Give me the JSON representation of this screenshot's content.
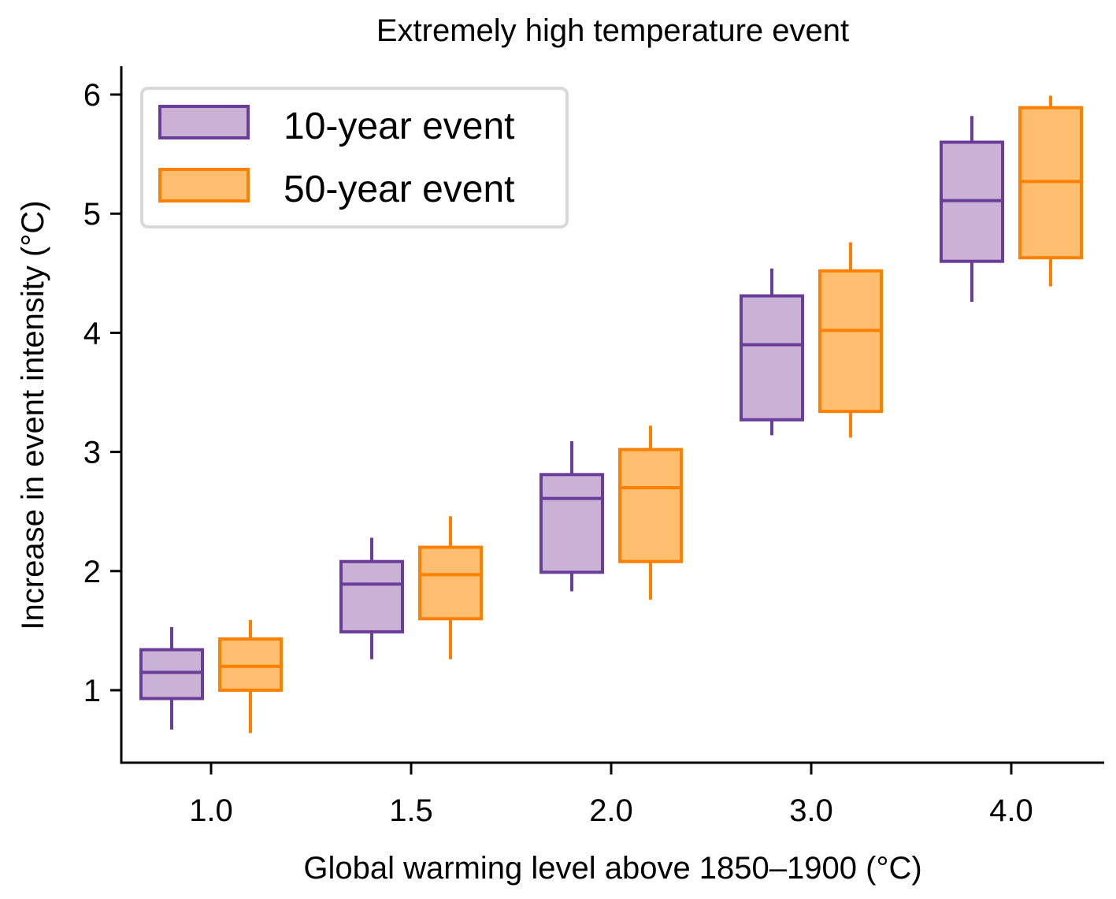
{
  "chart_data": {
    "type": "boxplot",
    "title": "Extremely high temperature event",
    "xlabel": "Global warming level above 1850–1900 (°C)",
    "ylabel": "Increase in event intensity (°C)",
    "categories": [
      "1.0",
      "1.5",
      "2.0",
      "3.0",
      "4.0"
    ],
    "yticks": [
      "1",
      "2",
      "3",
      "4",
      "5",
      "6"
    ],
    "ylim": [
      0.39,
      6.23
    ],
    "grid": false,
    "legend": {
      "position": "top-left"
    },
    "series": [
      {
        "name": "10-year event",
        "edge_color": "#6a3d9a",
        "fill_color": "#cab2d6",
        "boxes": [
          {
            "whislo": 0.67,
            "q1": 0.93,
            "med": 1.15,
            "q3": 1.34,
            "whishi": 1.53
          },
          {
            "whislo": 1.26,
            "q1": 1.49,
            "med": 1.89,
            "q3": 2.08,
            "whishi": 2.28
          },
          {
            "whislo": 1.83,
            "q1": 1.99,
            "med": 2.61,
            "q3": 2.81,
            "whishi": 3.09
          },
          {
            "whislo": 3.14,
            "q1": 3.27,
            "med": 3.9,
            "q3": 4.31,
            "whishi": 4.54
          },
          {
            "whislo": 4.26,
            "q1": 4.6,
            "med": 5.11,
            "q3": 5.6,
            "whishi": 5.82
          }
        ]
      },
      {
        "name": "50-year event",
        "edge_color": "#ff7f00",
        "fill_color": "#fdbf6f",
        "boxes": [
          {
            "whislo": 0.64,
            "q1": 1.0,
            "med": 1.2,
            "q3": 1.43,
            "whishi": 1.59
          },
          {
            "whislo": 1.26,
            "q1": 1.6,
            "med": 1.97,
            "q3": 2.2,
            "whishi": 2.46
          },
          {
            "whislo": 1.76,
            "q1": 2.08,
            "med": 2.7,
            "q3": 3.02,
            "whishi": 3.22
          },
          {
            "whislo": 3.12,
            "q1": 3.34,
            "med": 4.02,
            "q3": 4.52,
            "whishi": 4.76
          },
          {
            "whislo": 4.39,
            "q1": 4.63,
            "med": 5.27,
            "q3": 5.89,
            "whishi": 5.99
          }
        ]
      }
    ]
  }
}
